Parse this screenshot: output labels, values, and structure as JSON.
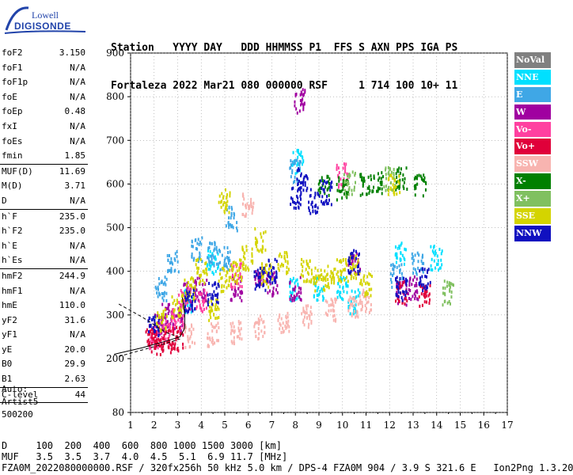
{
  "logo": {
    "line1": "Lowell",
    "line2": "DIGISONDE"
  },
  "header": {
    "labels": "Station   YYYY DAY   DDD HHMMSS P1  FFS S AXN PPS IGA PS",
    "values": "Fortaleza 2022 Mar21 080 000000 RSF     1 714 100 10+ 11"
  },
  "params": [
    {
      "name": "foF2",
      "value": "3.150"
    },
    {
      "name": "foF1",
      "value": "N/A"
    },
    {
      "name": "foF1p",
      "value": "N/A"
    },
    {
      "name": "foE",
      "value": "N/A"
    },
    {
      "name": "foEp",
      "value": "0.48"
    },
    {
      "name": "fxI",
      "value": "N/A"
    },
    {
      "name": "foEs",
      "value": "N/A"
    },
    {
      "name": "fmin",
      "value": "1.85"
    },
    {
      "sep": true
    },
    {
      "name": "MUF(D)",
      "value": "11.69"
    },
    {
      "name": "M(D)",
      "value": "3.71"
    },
    {
      "name": "D",
      "value": "N/A"
    },
    {
      "sep": true
    },
    {
      "name": "h`F",
      "value": "235.0"
    },
    {
      "name": "h`F2",
      "value": "235.0"
    },
    {
      "name": "h`E",
      "value": "N/A"
    },
    {
      "name": "h`Es",
      "value": "N/A"
    },
    {
      "sep": true
    },
    {
      "name": "hmF2",
      "value": "244.9"
    },
    {
      "name": "hmF1",
      "value": "N/A"
    },
    {
      "name": "hmE",
      "value": "110.0"
    },
    {
      "name": "yF2",
      "value": "31.6"
    },
    {
      "name": "yF1",
      "value": "N/A"
    },
    {
      "name": "yE",
      "value": "20.0"
    },
    {
      "name": "B0",
      "value": "29.9"
    },
    {
      "name": "B1",
      "value": "2.63"
    },
    {
      "sep": true
    },
    {
      "name": "C-level",
      "value": "44"
    },
    {
      "sep": true
    }
  ],
  "autoscale": {
    "line1": "Auto:",
    "line2": "Artist5",
    "line3": "500200"
  },
  "footer": {
    "d_row": "D     100  200  400  600  800 1000 1500 3000 [km]",
    "muf_row": "MUF   3.5  3.5  3.7  4.0  4.5  5.1  6.9 11.7 [MHz]",
    "file_row": "FZA0M_2022080000000.RSF / 320fx256h 50 kHz 5.0 km / DPS-4 FZA0M 904 / 3.9 S 321.6 E   Ion2Png 1.3.20"
  },
  "legend": [
    {
      "label": "NoVal",
      "color": "#808080"
    },
    {
      "label": "NNE",
      "color": "#00e0ff"
    },
    {
      "label": "E",
      "color": "#3fa7e6"
    },
    {
      "label": "W",
      "color": "#a000a0"
    },
    {
      "label": "Vo-",
      "color": "#ff40a0"
    },
    {
      "label": "Vo+",
      "color": "#e0003a"
    },
    {
      "label": "SSW",
      "color": "#f8b4b0"
    },
    {
      "label": "X-",
      "color": "#008000"
    },
    {
      "label": "X+",
      "color": "#80c060"
    },
    {
      "label": "SSE",
      "color": "#d4d400"
    },
    {
      "label": "NNW",
      "color": "#1010c0"
    }
  ],
  "chart_data": {
    "type": "scatter",
    "title": "",
    "xlabel": "",
    "ylabel": "",
    "xlim": [
      1,
      17
    ],
    "ylim": [
      80,
      900
    ],
    "x_ticks": [
      "1",
      "2",
      "3",
      "4",
      "5",
      "6",
      "7",
      "8",
      "9",
      "10",
      "11",
      "12",
      "13",
      "14",
      "15",
      "16",
      "17"
    ],
    "y_ticks": [
      "80",
      "200",
      "300",
      "400",
      "500",
      "600",
      "700",
      "800",
      "900"
    ],
    "grid": true,
    "series": [
      {
        "name": "NNE",
        "clusters": [
          [
            3.5,
            330
          ],
          [
            4.5,
            420
          ],
          [
            8.0,
            360
          ],
          [
            8.1,
            650
          ],
          [
            9.0,
            360
          ],
          [
            10.0,
            360
          ],
          [
            10.5,
            330
          ],
          [
            12.5,
            440
          ],
          [
            14.0,
            430
          ]
        ]
      },
      {
        "name": "E",
        "clusters": [
          [
            2.3,
            360
          ],
          [
            2.8,
            420
          ],
          [
            3.8,
            450
          ],
          [
            4.5,
            440
          ],
          [
            5.0,
            430
          ],
          [
            5.3,
            520
          ],
          [
            8.0,
            630
          ],
          [
            12.3,
            390
          ],
          [
            13.2,
            420
          ]
        ]
      },
      {
        "name": "W",
        "clusters": [
          [
            2.2,
            280
          ],
          [
            2.5,
            300
          ],
          [
            3.0,
            290
          ],
          [
            3.5,
            350
          ],
          [
            4.0,
            360
          ],
          [
            5.5,
            360
          ],
          [
            6.5,
            390
          ],
          [
            7.0,
            370
          ],
          [
            8.0,
            360
          ],
          [
            8.2,
            790
          ],
          [
            10.5,
            420
          ],
          [
            12.5,
            350
          ],
          [
            13.0,
            360
          ]
        ]
      },
      {
        "name": "Vo-",
        "clusters": [
          [
            2.0,
            250
          ],
          [
            2.5,
            260
          ],
          [
            3.0,
            290
          ],
          [
            3.3,
            340
          ],
          [
            4.0,
            330
          ],
          [
            5.5,
            390
          ],
          [
            10.0,
            620
          ]
        ]
      },
      {
        "name": "Vo+",
        "clusters": [
          [
            1.9,
            240
          ],
          [
            2.2,
            235
          ],
          [
            2.6,
            238
          ],
          [
            3.0,
            245
          ],
          [
            12.5,
            350
          ],
          [
            13.5,
            345
          ]
        ]
      },
      {
        "name": "SSW",
        "clusters": [
          [
            3.5,
            250
          ],
          [
            4.5,
            255
          ],
          [
            5.5,
            260
          ],
          [
            6.5,
            270
          ],
          [
            7.5,
            285
          ],
          [
            8.5,
            295
          ],
          [
            9.5,
            310
          ],
          [
            10.5,
            320
          ],
          [
            11.0,
            330
          ],
          [
            6.0,
            550
          ]
        ]
      },
      {
        "name": "X-",
        "clusters": [
          [
            9.2,
            600
          ],
          [
            10.0,
            590
          ],
          [
            11.0,
            600
          ],
          [
            11.5,
            600
          ],
          [
            12.5,
            610
          ],
          [
            13.3,
            600
          ]
        ]
      },
      {
        "name": "X+",
        "clusters": [
          [
            10.3,
            600
          ],
          [
            12.0,
            610
          ],
          [
            14.5,
            350
          ]
        ]
      },
      {
        "name": "SSE",
        "clusters": [
          [
            2.3,
            290
          ],
          [
            3.0,
            320
          ],
          [
            3.5,
            360
          ],
          [
            4.0,
            400
          ],
          [
            4.5,
            310
          ],
          [
            5.0,
            380
          ],
          [
            5.5,
            400
          ],
          [
            6.0,
            430
          ],
          [
            6.8,
            390
          ],
          [
            7.5,
            420
          ],
          [
            8.5,
            400
          ],
          [
            9.0,
            380
          ],
          [
            9.5,
            390
          ],
          [
            10.0,
            400
          ],
          [
            10.5,
            410
          ],
          [
            11.0,
            370
          ],
          [
            12.2,
            600
          ],
          [
            5.0,
            560
          ],
          [
            6.5,
            470
          ]
        ]
      },
      {
        "name": "NNW",
        "clusters": [
          [
            2.0,
            270
          ],
          [
            3.5,
            330
          ],
          [
            4.5,
            350
          ],
          [
            6.5,
            380
          ],
          [
            7.0,
            400
          ],
          [
            8.0,
            570
          ],
          [
            8.3,
            610
          ],
          [
            8.8,
            560
          ],
          [
            9.3,
            580
          ],
          [
            10.5,
            420
          ],
          [
            12.5,
            360
          ],
          [
            13.5,
            380
          ]
        ]
      }
    ],
    "traces": [
      {
        "name": "profile",
        "points": [
          [
            0.3,
            210
          ],
          [
            1.5,
            225
          ],
          [
            2.5,
            240
          ],
          [
            3.1,
            250
          ],
          [
            3.3,
            270
          ],
          [
            3.3,
            300
          ],
          [
            3.2,
            340
          ]
        ]
      },
      {
        "name": "dashed-upper",
        "points": [
          [
            0.5,
            325
          ],
          [
            1.5,
            295
          ],
          [
            2.5,
            260
          ],
          [
            3.0,
            250
          ]
        ]
      },
      {
        "name": "dashed-lower",
        "points": [
          [
            0.5,
            205
          ],
          [
            1.5,
            220
          ],
          [
            2.5,
            235
          ],
          [
            3.1,
            245
          ]
        ]
      }
    ]
  }
}
